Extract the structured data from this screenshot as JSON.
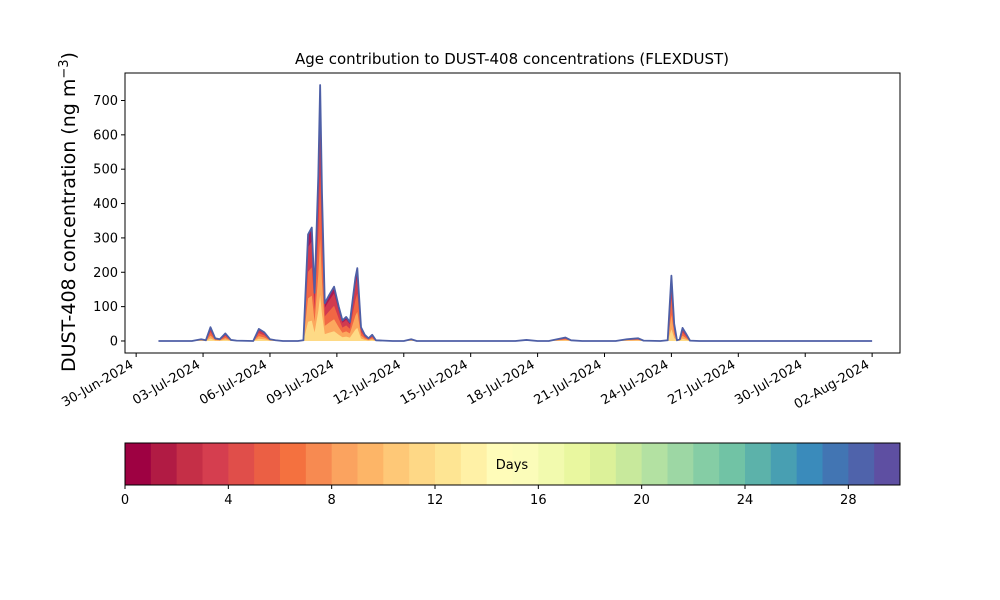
{
  "chart_data": {
    "type": "area",
    "title": "Age contribution to DUST-408 concentrations (FLEXDUST)",
    "ylabel_main": "DUST-408 concentration (ng m",
    "ylabel_sup": "−3",
    "ylabel_close": ")",
    "xlabel": "",
    "x_axis": {
      "type": "date",
      "range": [
        "2024-06-29T12:00",
        "2024-08-03T06:00"
      ],
      "ticks": [
        {
          "date": "2024-06-30",
          "label": "30-Jun-2024"
        },
        {
          "date": "2024-07-03",
          "label": "03-Jul-2024"
        },
        {
          "date": "2024-07-06",
          "label": "06-Jul-2024"
        },
        {
          "date": "2024-07-09",
          "label": "09-Jul-2024"
        },
        {
          "date": "2024-07-12",
          "label": "12-Jul-2024"
        },
        {
          "date": "2024-07-15",
          "label": "15-Jul-2024"
        },
        {
          "date": "2024-07-18",
          "label": "18-Jul-2024"
        },
        {
          "date": "2024-07-21",
          "label": "21-Jul-2024"
        },
        {
          "date": "2024-07-24",
          "label": "24-Jul-2024"
        },
        {
          "date": "2024-07-27",
          "label": "27-Jul-2024"
        },
        {
          "date": "2024-07-30",
          "label": "30-Jul-2024"
        },
        {
          "date": "2024-08-02",
          "label": "02-Aug-2024"
        }
      ]
    },
    "y_axis": {
      "range": [
        -35,
        780
      ],
      "ticks": [
        0,
        100,
        200,
        300,
        400,
        500,
        600,
        700
      ],
      "tick_labels": [
        "0",
        "100",
        "200",
        "300",
        "400",
        "500",
        "600",
        "700"
      ]
    },
    "total_series": {
      "color": "#4e5fa6",
      "points": [
        [
          "2024-07-01T00:00",
          0
        ],
        [
          "2024-07-02T12:00",
          0
        ],
        [
          "2024-07-02T22:00",
          5
        ],
        [
          "2024-07-03T03:00",
          2
        ],
        [
          "2024-07-03T08:00",
          40
        ],
        [
          "2024-07-03T13:00",
          8
        ],
        [
          "2024-07-03T18:00",
          5
        ],
        [
          "2024-07-04T00:00",
          22
        ],
        [
          "2024-07-04T06:00",
          3
        ],
        [
          "2024-07-04T12:00",
          1
        ],
        [
          "2024-07-05T06:00",
          0
        ],
        [
          "2024-07-05T12:00",
          35
        ],
        [
          "2024-07-05T18:00",
          25
        ],
        [
          "2024-07-06T00:00",
          5
        ],
        [
          "2024-07-06T06:00",
          2
        ],
        [
          "2024-07-06T14:00",
          0
        ],
        [
          "2024-07-07T06:00",
          0
        ],
        [
          "2024-07-07T12:00",
          2
        ],
        [
          "2024-07-07T17:00",
          310
        ],
        [
          "2024-07-07T21:00",
          330
        ],
        [
          "2024-07-08T00:00",
          140
        ],
        [
          "2024-07-08T04:00",
          480
        ],
        [
          "2024-07-08T06:00",
          745
        ],
        [
          "2024-07-08T08:00",
          430
        ],
        [
          "2024-07-08T11:00",
          110
        ],
        [
          "2024-07-08T16:00",
          135
        ],
        [
          "2024-07-08T21:00",
          158
        ],
        [
          "2024-07-09T02:00",
          100
        ],
        [
          "2024-07-09T06:00",
          60
        ],
        [
          "2024-07-09T10:00",
          70
        ],
        [
          "2024-07-09T14:00",
          55
        ],
        [
          "2024-07-09T20:00",
          185
        ],
        [
          "2024-07-09T22:00",
          212
        ],
        [
          "2024-07-10T02:00",
          40
        ],
        [
          "2024-07-10T06:00",
          18
        ],
        [
          "2024-07-10T10:00",
          8
        ],
        [
          "2024-07-10T14:00",
          18
        ],
        [
          "2024-07-10T18:00",
          2
        ],
        [
          "2024-07-11T12:00",
          0
        ],
        [
          "2024-07-12T00:00",
          0
        ],
        [
          "2024-07-12T08:00",
          5
        ],
        [
          "2024-07-12T14:00",
          0
        ],
        [
          "2024-07-16T00:00",
          0
        ],
        [
          "2024-07-17T00:00",
          0
        ],
        [
          "2024-07-17T12:00",
          3
        ],
        [
          "2024-07-18T00:00",
          0
        ],
        [
          "2024-07-18T12:00",
          0
        ],
        [
          "2024-07-19T06:00",
          10
        ],
        [
          "2024-07-19T12:00",
          2
        ],
        [
          "2024-07-20T00:00",
          0
        ],
        [
          "2024-07-21T12:00",
          0
        ],
        [
          "2024-07-22T00:00",
          5
        ],
        [
          "2024-07-22T12:00",
          8
        ],
        [
          "2024-07-22T18:00",
          1
        ],
        [
          "2024-07-23T12:00",
          0
        ],
        [
          "2024-07-23T20:00",
          2
        ],
        [
          "2024-07-24T00:00",
          190
        ],
        [
          "2024-07-24T03:00",
          50
        ],
        [
          "2024-07-24T06:00",
          2
        ],
        [
          "2024-07-24T09:00",
          5
        ],
        [
          "2024-07-24T12:00",
          38
        ],
        [
          "2024-07-24T16:00",
          20
        ],
        [
          "2024-07-24T20:00",
          1
        ],
        [
          "2024-07-25T06:00",
          0
        ],
        [
          "2024-08-02T00:00",
          0
        ]
      ]
    },
    "stack_colors": [
      "#9e0142",
      "#d53e4f",
      "#f46d43",
      "#fdae61",
      "#fee08b"
    ],
    "colorbar": {
      "label": "Days",
      "range": [
        0,
        30
      ],
      "ticks": [
        0,
        4,
        8,
        12,
        16,
        20,
        24,
        28
      ],
      "tick_labels": [
        "0",
        "4",
        "8",
        "12",
        "16",
        "20",
        "24",
        "28"
      ],
      "colors": [
        "#9e0142",
        "#b11b44",
        "#c52f47",
        "#d53e4f",
        "#e04e4a",
        "#eb5f44",
        "#f4713f",
        "#f78a51",
        "#fba35f",
        "#fdb567",
        "#fec877",
        "#fed886",
        "#fee593",
        "#fff1a6",
        "#fffcb9",
        "#fbfcb9",
        "#f2faae",
        "#e9f79f",
        "#dcf199",
        "#c8e99c",
        "#b3e1a2",
        "#9dd7a4",
        "#85cda5",
        "#71c3a5",
        "#5cb2aa",
        "#489fb2",
        "#3a8bbb",
        "#4275b3",
        "#4f63ab",
        "#5e4fa2"
      ]
    }
  }
}
